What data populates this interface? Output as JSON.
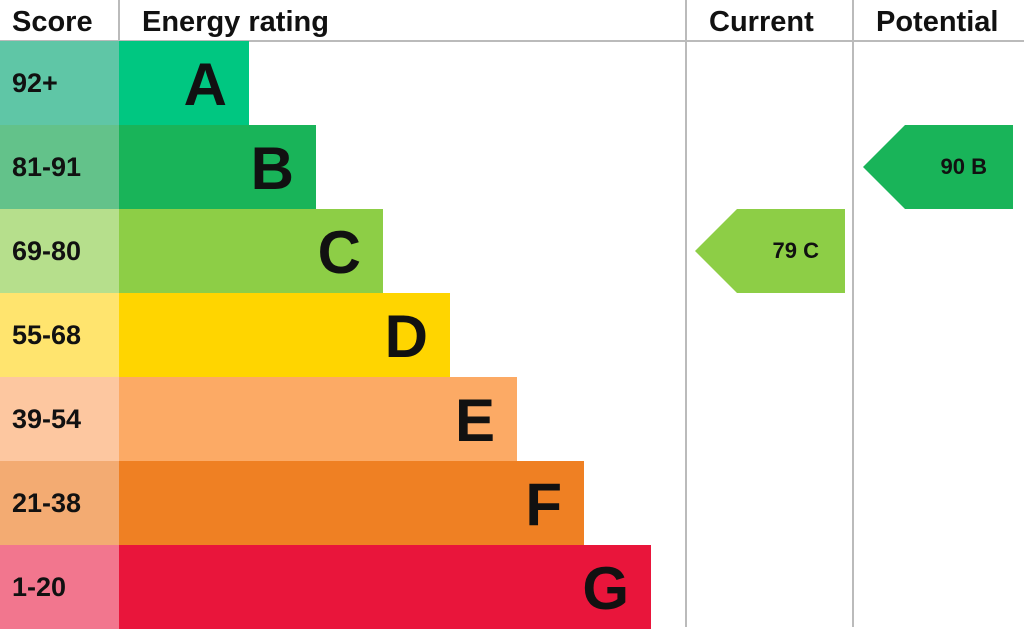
{
  "headers": {
    "score": "Score",
    "rating": "Energy rating",
    "current": "Current",
    "potential": "Potential"
  },
  "chart_data": {
    "type": "bar",
    "bands": [
      {
        "letter": "A",
        "range": "92+",
        "color": "#00c781",
        "score_color": "#5fc6a6"
      },
      {
        "letter": "B",
        "range": "81-91",
        "color": "#19b459",
        "score_color": "#63c28a"
      },
      {
        "letter": "C",
        "range": "69-80",
        "color": "#8dce46",
        "score_color": "#b6df8c"
      },
      {
        "letter": "D",
        "range": "55-68",
        "color": "#ffd500",
        "score_color": "#ffe46e"
      },
      {
        "letter": "E",
        "range": "39-54",
        "color": "#fcaa65",
        "score_color": "#fdc7a0"
      },
      {
        "letter": "F",
        "range": "21-38",
        "color": "#ef8023",
        "score_color": "#f3ab72"
      },
      {
        "letter": "G",
        "range": "1-20",
        "color": "#e9153b",
        "score_color": "#f2768e"
      }
    ],
    "current": {
      "value": 79,
      "band": "C",
      "label": "79  C",
      "color": "#8dce46"
    },
    "potential": {
      "value": 90,
      "band": "B",
      "label": "90  B",
      "color": "#19b459"
    }
  }
}
